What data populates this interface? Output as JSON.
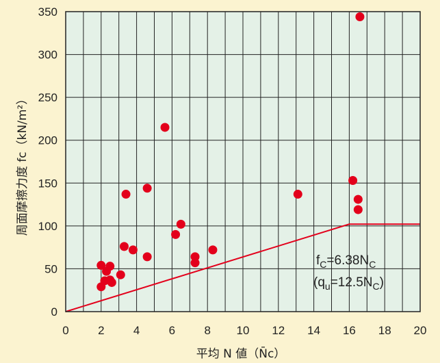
{
  "chart_data": {
    "type": "scatter",
    "xlabel": "平均 N 値（N̄c）",
    "ylabel": "周面摩擦力度 fc（kN/m²）",
    "xlim": [
      0,
      20
    ],
    "ylim": [
      0,
      350
    ],
    "x_ticks": [
      0,
      2,
      4,
      6,
      8,
      10,
      12,
      14,
      16,
      18,
      20
    ],
    "y_ticks": [
      0,
      50,
      100,
      150,
      200,
      250,
      300,
      350
    ],
    "grid": true,
    "colors": {
      "points": "#e3001b",
      "line": "#e3001b",
      "plot_bg": "#e4f1e7",
      "page_bg": "#fbf3d0"
    },
    "points": [
      {
        "x": 2.0,
        "y": 54
      },
      {
        "x": 2.0,
        "y": 29
      },
      {
        "x": 2.2,
        "y": 36
      },
      {
        "x": 2.3,
        "y": 47
      },
      {
        "x": 2.5,
        "y": 53
      },
      {
        "x": 2.5,
        "y": 37
      },
      {
        "x": 2.6,
        "y": 34
      },
      {
        "x": 3.1,
        "y": 43
      },
      {
        "x": 3.3,
        "y": 76
      },
      {
        "x": 3.4,
        "y": 137
      },
      {
        "x": 3.8,
        "y": 72
      },
      {
        "x": 4.6,
        "y": 144
      },
      {
        "x": 4.6,
        "y": 64
      },
      {
        "x": 5.6,
        "y": 215
      },
      {
        "x": 6.2,
        "y": 90
      },
      {
        "x": 6.5,
        "y": 102
      },
      {
        "x": 7.3,
        "y": 64
      },
      {
        "x": 7.3,
        "y": 57
      },
      {
        "x": 8.3,
        "y": 72
      },
      {
        "x": 13.1,
        "y": 137
      },
      {
        "x": 16.2,
        "y": 153
      },
      {
        "x": 16.5,
        "y": 131
      },
      {
        "x": 16.5,
        "y": 119
      },
      {
        "x": 16.6,
        "y": 344
      }
    ],
    "formula_line": [
      {
        "x": 0,
        "y": 0
      },
      {
        "x": 16,
        "y": 102.1
      },
      {
        "x": 20,
        "y": 102.1
      }
    ],
    "annotation": {
      "line1": {
        "f": "f",
        "c": "C",
        "eq": "=6.38N",
        "c2": "C"
      },
      "line2": {
        "open": "(q",
        "u": "u",
        "eq": "=12.5N",
        "c": "C",
        "close": ")"
      }
    }
  }
}
